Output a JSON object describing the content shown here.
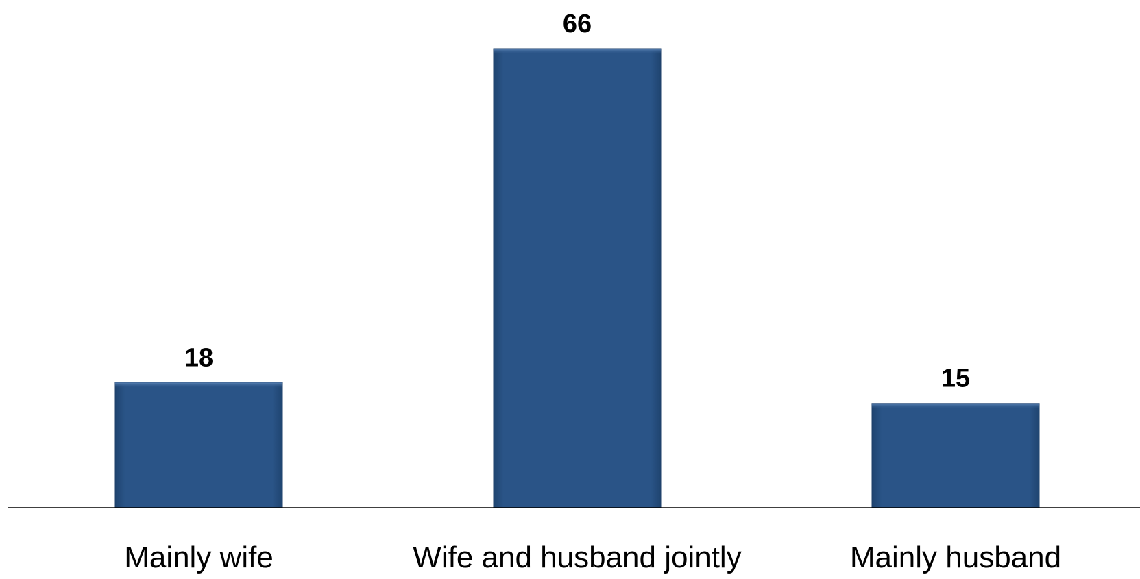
{
  "chart_data": {
    "type": "bar",
    "categories": [
      "Mainly wife",
      "Wife and husband jointly",
      "Mainly husband"
    ],
    "values": [
      18,
      66,
      15
    ],
    "data_labels": [
      "18",
      "66",
      "15"
    ],
    "title": "",
    "xlabel": "",
    "ylabel": "",
    "ylim": [
      0,
      66
    ],
    "grid": false,
    "legend": "none",
    "colors": {
      "bar": "#285183",
      "bar_edge": "#1e3f68",
      "axis": "#000000",
      "text": "#000000"
    }
  }
}
